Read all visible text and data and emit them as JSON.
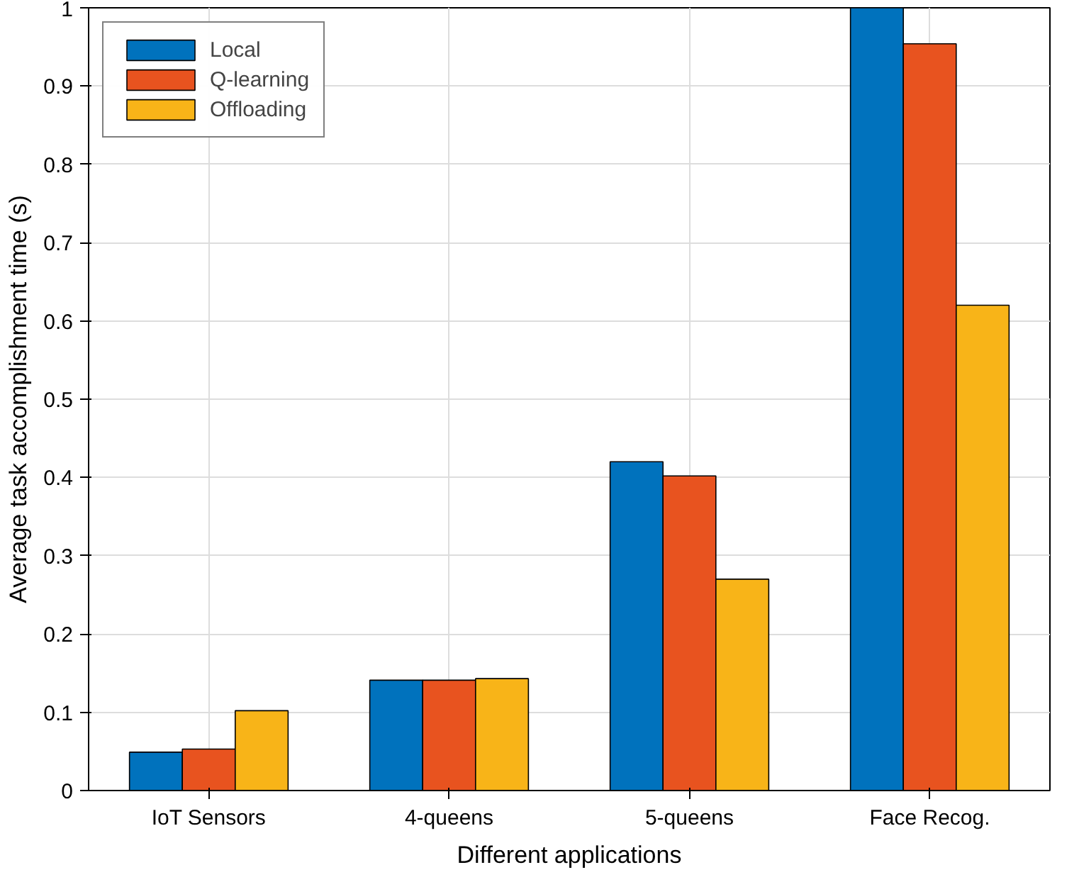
{
  "chart_data": {
    "type": "bar",
    "xlabel": "Different applications",
    "ylabel": "Average task accomplishment time (s)",
    "categories": [
      "IoT Sensors",
      "4-queens",
      "5-queens",
      "Face Recog."
    ],
    "series": [
      {
        "name": "Local",
        "color": "#0072bd",
        "values": [
          0.049,
          0.141,
          0.42,
          1.0
        ]
      },
      {
        "name": "Q-learning",
        "color": "#e8531f",
        "values": [
          0.053,
          0.141,
          0.402,
          0.954
        ]
      },
      {
        "name": "Offloading",
        "color": "#f8b418",
        "values": [
          0.102,
          0.143,
          0.27,
          0.62
        ]
      }
    ],
    "ylim": [
      0,
      1
    ],
    "yticks": [
      0,
      0.1,
      0.2,
      0.3,
      0.4,
      0.5,
      0.6,
      0.7,
      0.8,
      0.9,
      1
    ],
    "grid": true,
    "legend": "top left"
  }
}
